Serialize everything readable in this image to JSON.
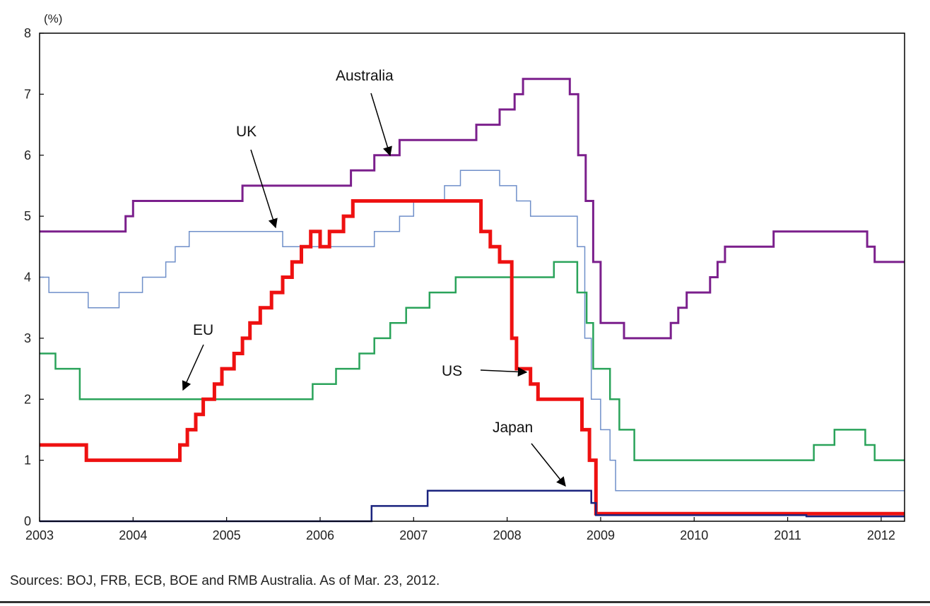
{
  "chart_data": {
    "type": "line",
    "title": "",
    "y_unit_label": "(%)",
    "ylim": [
      0,
      8
    ],
    "yticks": [
      "0",
      "1",
      "2",
      "3",
      "4",
      "5",
      "6",
      "7",
      "8"
    ],
    "xlim": [
      2003,
      2012.25
    ],
    "xticks": [
      "2003",
      "2004",
      "2005",
      "2006",
      "2007",
      "2008",
      "2009",
      "2010",
      "2011",
      "2012"
    ],
    "grid": false,
    "series": [
      {
        "name": "Australia",
        "color": "#7b1f8c",
        "width": 3,
        "x": [
          2003,
          2003.85,
          2003.92,
          2004.0,
          2005.17,
          2006.33,
          2006.58,
          2006.85,
          2007.67,
          2007.92,
          2008.08,
          2008.17,
          2008.67,
          2008.76,
          2008.84,
          2008.92,
          2009.0,
          2009.25,
          2009.75,
          2009.83,
          2009.92,
          2010.17,
          2010.25,
          2010.33,
          2010.85,
          2011.85,
          2011.93,
          2012.25
        ],
        "y": [
          4.75,
          4.75,
          5.0,
          5.25,
          5.5,
          5.75,
          6.0,
          6.25,
          6.5,
          6.75,
          7.0,
          7.25,
          7.0,
          6.0,
          5.25,
          4.25,
          3.25,
          3.0,
          3.25,
          3.5,
          3.75,
          4.0,
          4.25,
          4.5,
          4.75,
          4.5,
          4.25,
          4.25
        ],
        "annotation": "Australia"
      },
      {
        "name": "UK",
        "color": "#6f8fc9",
        "width": 1.5,
        "x": [
          2003,
          2003.1,
          2003.52,
          2003.85,
          2004.1,
          2004.35,
          2004.45,
          2004.6,
          2004.67,
          2005.6,
          2006.58,
          2006.85,
          2007.0,
          2007.33,
          2007.5,
          2007.92,
          2008.1,
          2008.25,
          2008.75,
          2008.83,
          2008.9,
          2009.0,
          2009.1,
          2009.16,
          2012.25
        ],
        "y": [
          4.0,
          3.75,
          3.5,
          3.75,
          4.0,
          4.25,
          4.5,
          4.75,
          4.75,
          4.5,
          4.75,
          5.0,
          5.25,
          5.5,
          5.75,
          5.5,
          5.25,
          5.0,
          4.5,
          3.0,
          2.0,
          1.5,
          1.0,
          0.5,
          0.5
        ],
        "annotation": "UK"
      },
      {
        "name": "EU",
        "color": "#2aa35a",
        "width": 2.5,
        "x": [
          2003,
          2003.17,
          2003.43,
          2005.92,
          2006.17,
          2006.42,
          2006.58,
          2006.75,
          2006.92,
          2007.17,
          2007.45,
          2008.5,
          2008.75,
          2008.85,
          2008.92,
          2009.1,
          2009.2,
          2009.36,
          2011.28,
          2011.5,
          2011.83,
          2011.93,
          2012.25
        ],
        "y": [
          2.75,
          2.5,
          2.0,
          2.25,
          2.5,
          2.75,
          3.0,
          3.25,
          3.5,
          3.75,
          4.0,
          4.25,
          3.75,
          3.25,
          2.5,
          2.0,
          1.5,
          1.0,
          1.25,
          1.5,
          1.25,
          1.0,
          1.0
        ],
        "annotation": "EU"
      },
      {
        "name": "US",
        "color": "#ee1111",
        "width": 5,
        "x": [
          2003,
          2003.5,
          2004.5,
          2004.58,
          2004.67,
          2004.75,
          2004.87,
          2004.95,
          2005.08,
          2005.17,
          2005.25,
          2005.36,
          2005.48,
          2005.6,
          2005.7,
          2005.8,
          2005.9,
          2006.0,
          2006.1,
          2006.25,
          2006.35,
          2006.48,
          2007.72,
          2007.82,
          2007.92,
          2008.05,
          2008.1,
          2008.25,
          2008.33,
          2008.8,
          2008.88,
          2008.95,
          2012.25
        ],
        "y": [
          1.25,
          1.0,
          1.25,
          1.5,
          1.75,
          2.0,
          2.25,
          2.5,
          2.75,
          3.0,
          3.25,
          3.5,
          3.75,
          4.0,
          4.25,
          4.5,
          4.75,
          4.5,
          4.75,
          5.0,
          5.25,
          5.25,
          4.75,
          4.5,
          4.25,
          3.0,
          2.5,
          2.25,
          2.0,
          1.5,
          1.0,
          0.125,
          0.125
        ],
        "annotation": "US"
      },
      {
        "name": "Japan",
        "color": "#1a237e",
        "width": 2.5,
        "x": [
          2003,
          2006.52,
          2006.55,
          2007.12,
          2007.15,
          2008.8,
          2008.9,
          2008.95,
          2011.2,
          2012.25
        ],
        "y": [
          0.0,
          0.0,
          0.25,
          0.25,
          0.5,
          0.5,
          0.3,
          0.1,
          0.08,
          0.08
        ],
        "annotation": "Japan"
      }
    ],
    "source_note": "Sources: BOJ, FRB, ECB, BOE and RMB Australia. As of Mar. 23, 2012."
  }
}
